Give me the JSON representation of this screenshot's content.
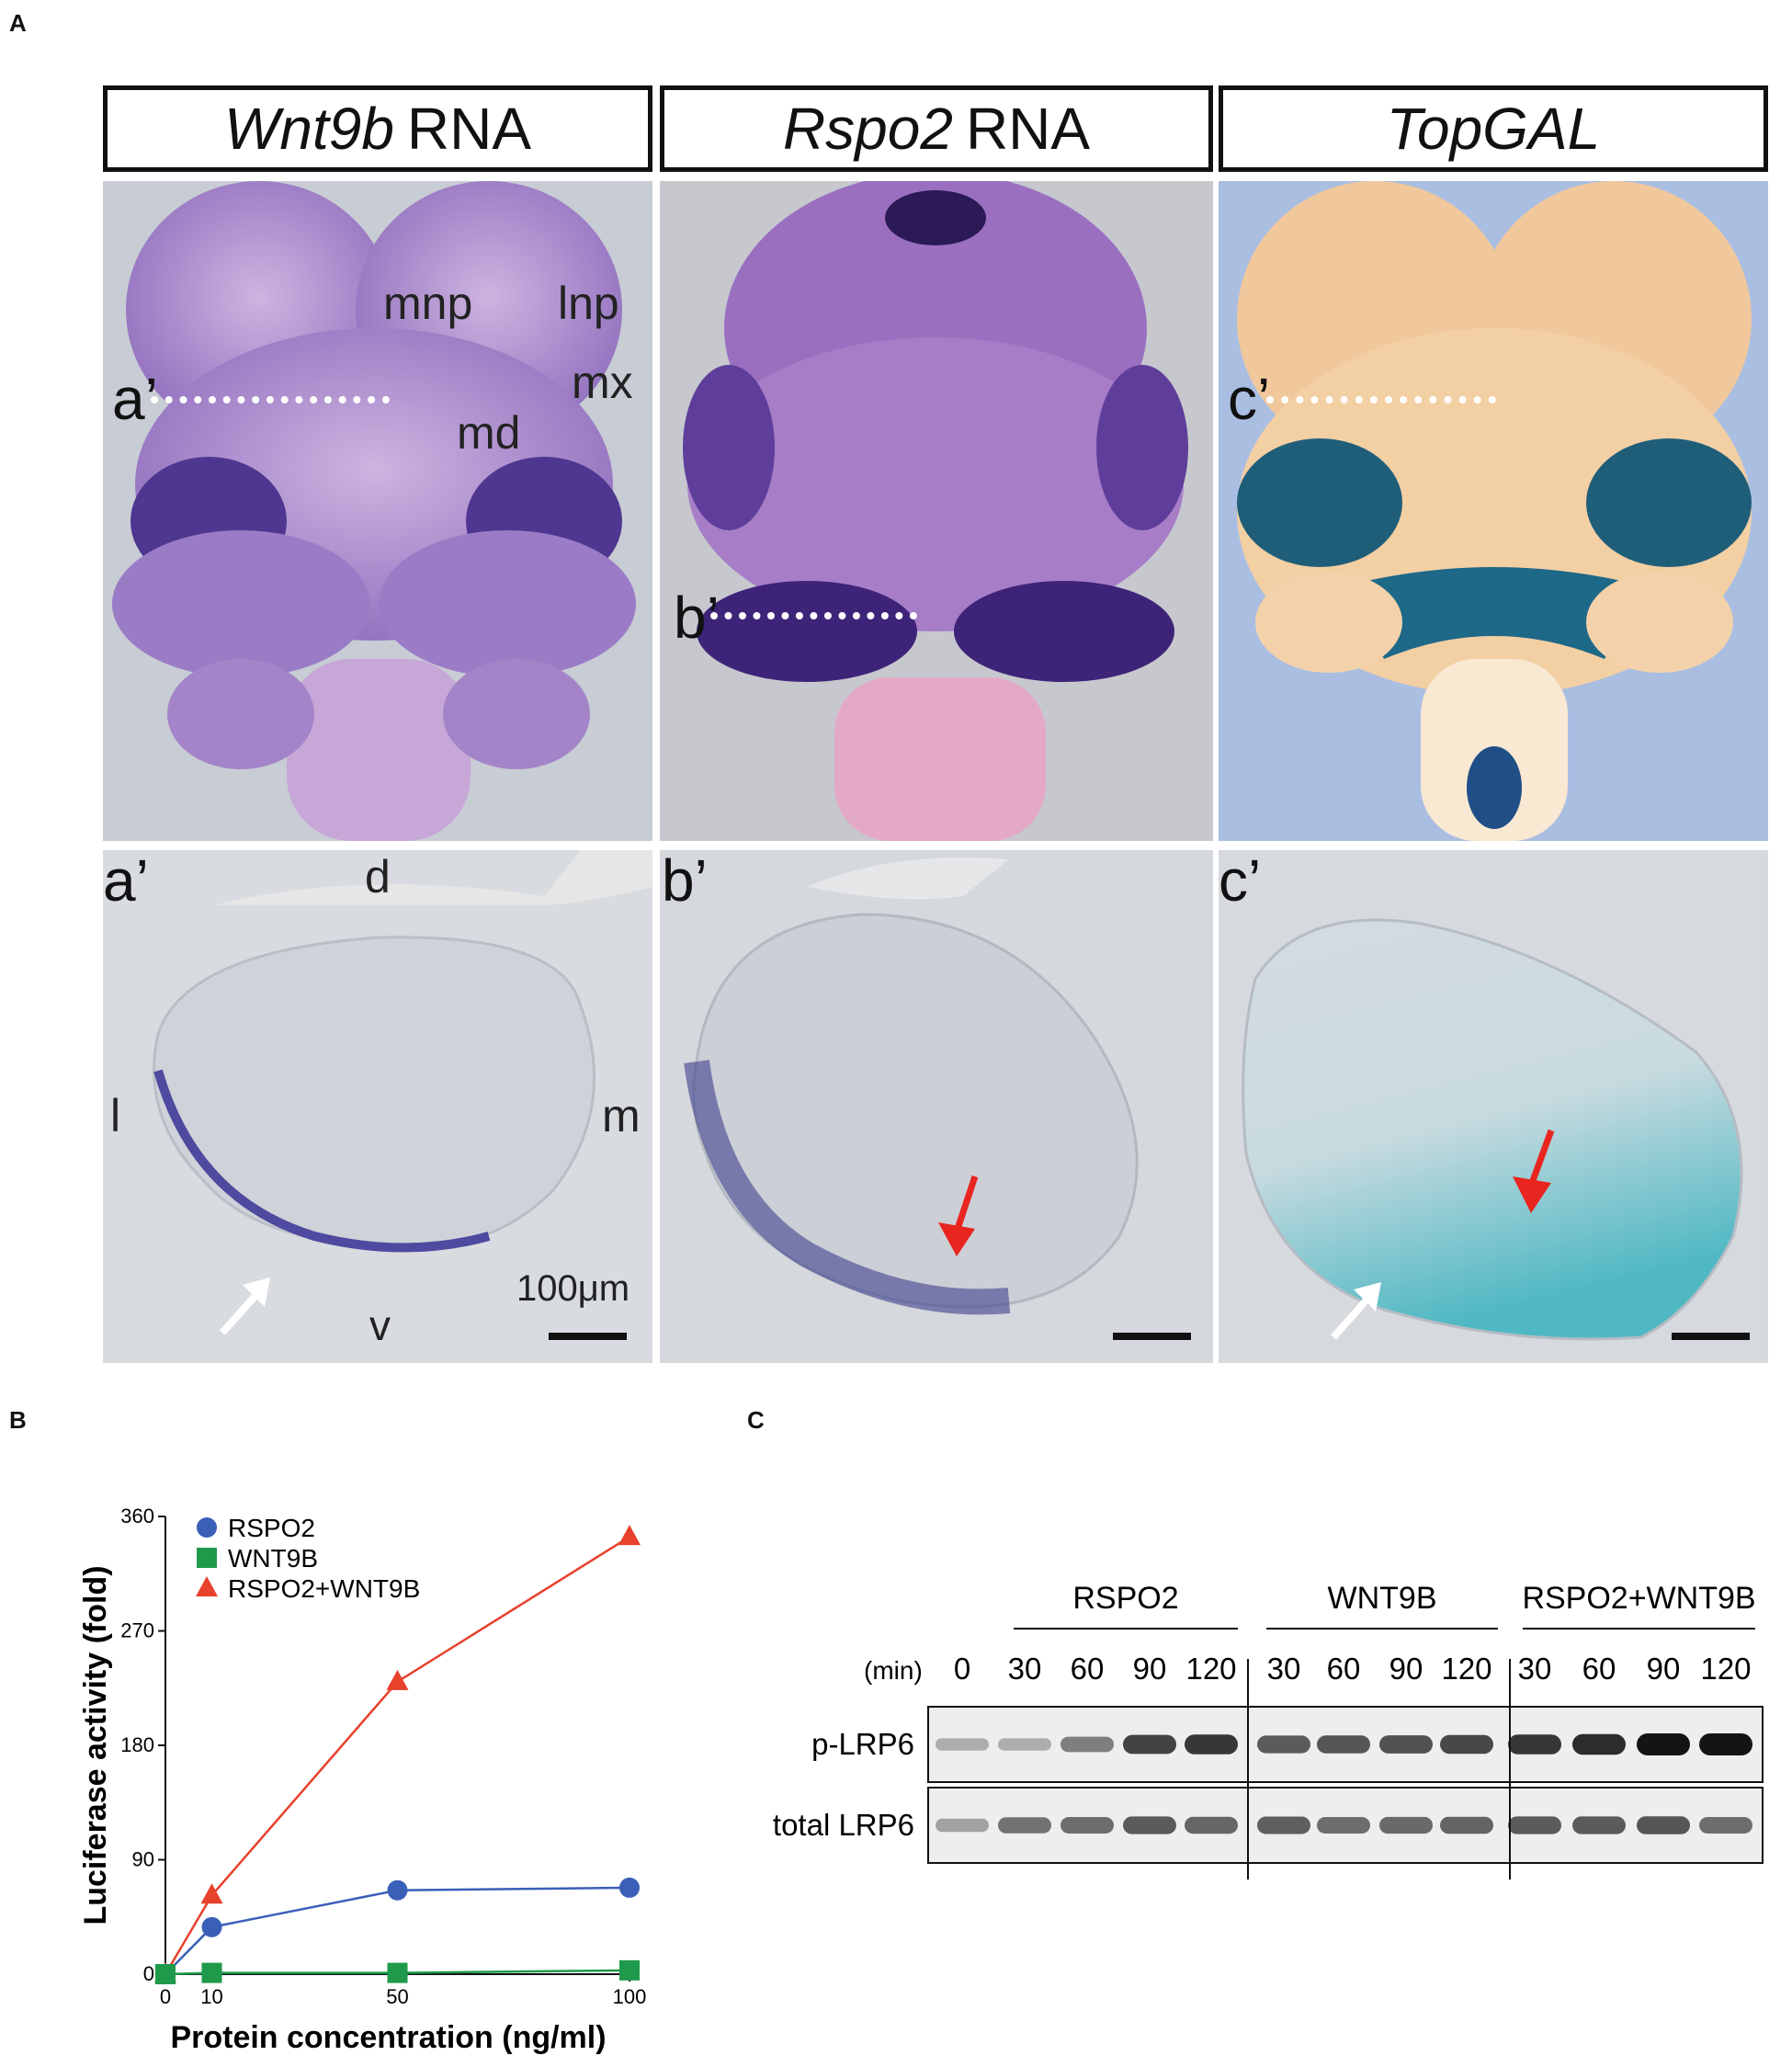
{
  "panels": {
    "a": "A",
    "b": "B",
    "c": "C"
  },
  "panelA": {
    "headers": [
      {
        "italic": "Wnt9b",
        "rest": "RNA"
      },
      {
        "italic": "Rspo2",
        "rest": "RNA"
      },
      {
        "italic": "TopGAL",
        "rest": ""
      }
    ],
    "top_labels": {
      "mnp": "mnp",
      "lnp": "lnp",
      "mx": "mx",
      "md": "md",
      "a": "a’",
      "b": "b’",
      "c": "c’"
    },
    "bottom_labels": {
      "a": "a’",
      "b": "b’",
      "c": "c’",
      "d": "d",
      "l": "l",
      "m": "m",
      "v": "v",
      "scale": "100μm"
    }
  },
  "colors": {
    "stain_purple": "#6a4aa8",
    "stain_blue": "#1f6b86",
    "rspo2": "#3a5fb8",
    "wnt9b": "#1e9a4a",
    "combo": "#e8412c"
  },
  "chart_data": {
    "type": "line",
    "xlabel": "Protein concentration (ng/ml)",
    "ylabel": "Luciferase activity (fold)",
    "x": [
      0,
      10,
      50,
      100
    ],
    "x_ticks": [
      "0",
      "10",
      "50",
      "100"
    ],
    "ylim": [
      0,
      360
    ],
    "y_ticks": [
      "0",
      "90",
      "180",
      "270",
      "360"
    ],
    "legend_position": "top-left",
    "series": [
      {
        "name": "RSPO2",
        "marker": "circle",
        "values": [
          0,
          37,
          66,
          68
        ]
      },
      {
        "name": "WNT9B",
        "marker": "square",
        "values": [
          0,
          1,
          1,
          3
        ]
      },
      {
        "name": "RSPO2+WNT9B",
        "marker": "triangle",
        "values": [
          0,
          62,
          230,
          344
        ]
      }
    ]
  },
  "panelC": {
    "groups": [
      "RSPO2",
      "WNT9B",
      "RSPO2+WNT9B"
    ],
    "min_label": "(min)",
    "times": [
      "0",
      "30",
      "60",
      "90",
      "120",
      "30",
      "60",
      "90",
      "120",
      "30",
      "60",
      "90",
      "120"
    ],
    "rows": [
      "p-LRP6",
      "total LRP6"
    ],
    "p_lrp6_intensity": [
      0.35,
      0.35,
      0.55,
      0.8,
      0.85,
      0.7,
      0.72,
      0.74,
      0.78,
      0.85,
      0.9,
      1.0,
      1.0
    ],
    "total_lrp6_intensity": [
      0.4,
      0.6,
      0.62,
      0.7,
      0.65,
      0.68,
      0.62,
      0.64,
      0.66,
      0.7,
      0.7,
      0.72,
      0.62
    ]
  }
}
